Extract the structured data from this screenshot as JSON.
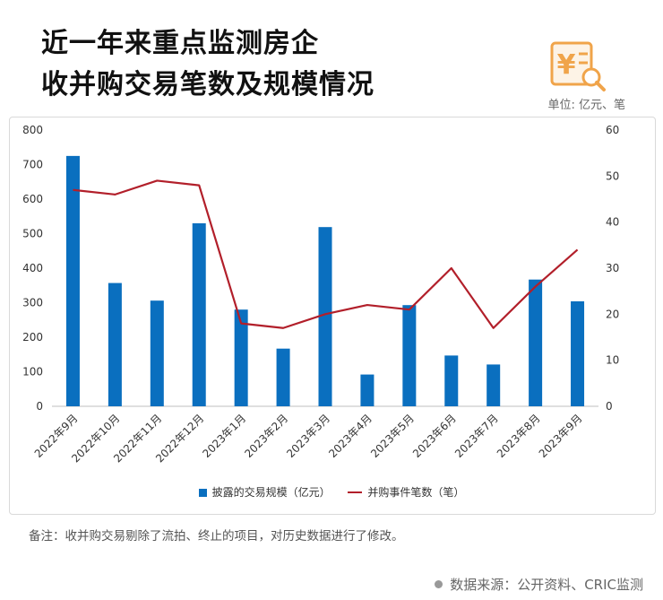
{
  "header": {
    "title_line1": "近一年来重点监测房企",
    "title_line2": "收并购交易笔数及规模情况",
    "unit": "单位: 亿元、笔"
  },
  "logo": {
    "icon": "yen-document-magnifier-icon",
    "glyph": "¥",
    "color": "#f0a44a"
  },
  "chart_data": {
    "type": "bar+line",
    "categories": [
      "2022年9月",
      "2022年10月",
      "2022年11月",
      "2022年12月",
      "2023年1月",
      "2023年2月",
      "2023年3月",
      "2023年4月",
      "2023年5月",
      "2023年6月",
      "2023年7月",
      "2023年8月",
      "2023年9月"
    ],
    "series": [
      {
        "name": "披露的交易规模（亿元）",
        "type": "bar",
        "axis": "left",
        "color": "#0a6fbf",
        "values": [
          725,
          357,
          306,
          530,
          280,
          167,
          519,
          92,
          293,
          147,
          121,
          367,
          304
        ]
      },
      {
        "name": "并购事件笔数（笔）",
        "type": "line",
        "axis": "right",
        "color": "#b21f2a",
        "values": [
          47,
          46,
          49,
          48,
          18,
          17,
          20,
          22,
          21,
          30,
          17,
          26,
          34
        ]
      }
    ],
    "left_axis": {
      "min": 0,
      "max": 800,
      "ticks": [
        "0",
        "100",
        "200",
        "300",
        "400",
        "500",
        "600",
        "700",
        "800"
      ]
    },
    "right_axis": {
      "min": 0,
      "max": 60,
      "ticks": [
        "0",
        "10",
        "20",
        "30",
        "40",
        "50",
        "60"
      ]
    },
    "grid": false,
    "legend_position": "bottom"
  },
  "footer": {
    "note": "备注：收并购交易剔除了流拍、终止的项目，对历史数据进行了修改。",
    "source": "数据来源：公开资料、CRIC监测"
  }
}
